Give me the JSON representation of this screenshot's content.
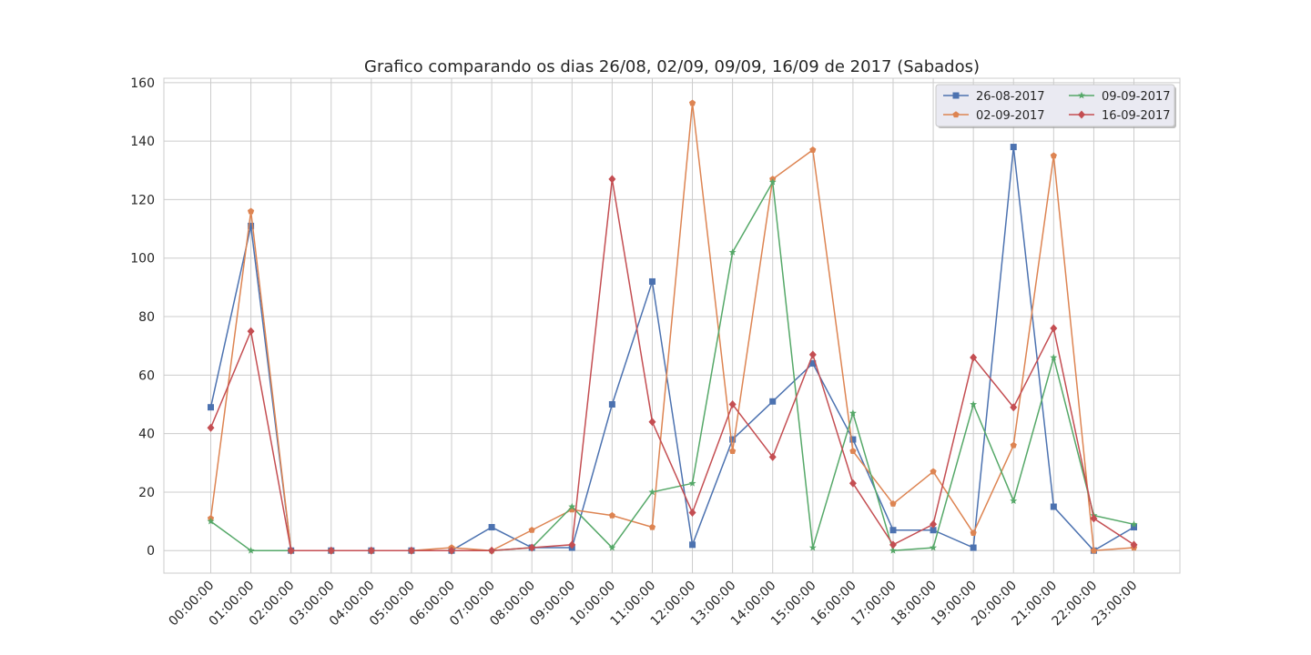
{
  "chart_data": {
    "type": "line",
    "title": "Grafico comparando os dias 26/08, 02/09, 09/09, 16/09 de 2017 (Sabados)",
    "xlabel": "",
    "ylabel": "",
    "categories": [
      "00:00:00",
      "01:00:00",
      "02:00:00",
      "03:00:00",
      "04:00:00",
      "05:00:00",
      "06:00:00",
      "07:00:00",
      "08:00:00",
      "09:00:00",
      "10:00:00",
      "11:00:00",
      "12:00:00",
      "13:00:00",
      "14:00:00",
      "15:00:00",
      "16:00:00",
      "17:00:00",
      "18:00:00",
      "19:00:00",
      "20:00:00",
      "21:00:00",
      "22:00:00",
      "23:00:00"
    ],
    "ylim": [
      -7.7,
      161.5
    ],
    "yticks": [
      0,
      20,
      40,
      60,
      80,
      100,
      120,
      140,
      160
    ],
    "grid": true,
    "legend": "top-right",
    "legend_columns": 2,
    "series": [
      {
        "name": "26-08-2017",
        "color": "#4c72b0",
        "marker": "square",
        "values": [
          49,
          111,
          0,
          0,
          0,
          0,
          0,
          8,
          1,
          1,
          50,
          92,
          2,
          38,
          51,
          64,
          38,
          7,
          7,
          1,
          138,
          15,
          0,
          8
        ]
      },
      {
        "name": "02-09-2017",
        "color": "#dd8452",
        "marker": "pentagon",
        "values": [
          11,
          116,
          0,
          0,
          0,
          0,
          1,
          0,
          7,
          14,
          12,
          8,
          153,
          34,
          127,
          137,
          34,
          16,
          27,
          6,
          36,
          135,
          0,
          1
        ]
      },
      {
        "name": "09-09-2017",
        "color": "#55a868",
        "marker": "star",
        "values": [
          10,
          0,
          0,
          0,
          0,
          0,
          0,
          0,
          1,
          15,
          1,
          20,
          23,
          102,
          126,
          1,
          47,
          0,
          1,
          50,
          17,
          66,
          12,
          9
        ]
      },
      {
        "name": "16-09-2017",
        "color": "#c44e52",
        "marker": "diamond",
        "values": [
          42,
          75,
          0,
          0,
          0,
          0,
          0,
          0,
          1,
          2,
          127,
          44,
          13,
          50,
          32,
          67,
          23,
          2,
          9,
          66,
          49,
          76,
          11,
          2
        ]
      }
    ]
  }
}
